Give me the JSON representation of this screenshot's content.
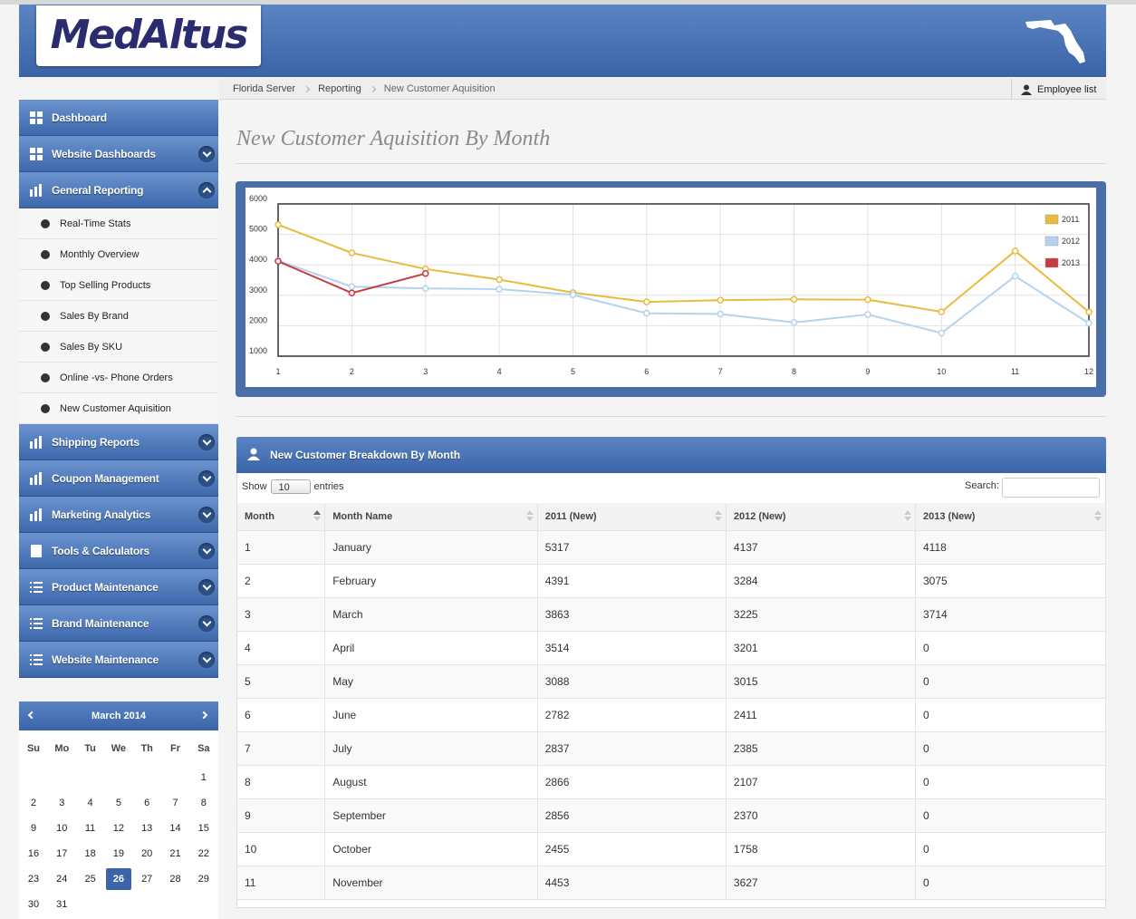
{
  "header": {
    "logo": "MedAltus"
  },
  "breadcrumb": [
    "Florida Server",
    "Reporting",
    "New Customer Aquisition"
  ],
  "employee_list": "Employee list",
  "sidebar": {
    "menu": [
      {
        "label": "Dashboard"
      },
      {
        "label": "Website Dashboards"
      },
      {
        "label": "General Reporting",
        "items": [
          "Real-Time Stats",
          "Monthly Overview",
          "Top Selling Products",
          "Sales By Brand",
          "Sales By SKU",
          "Online -vs- Phone Orders",
          "New Customer Aquisition"
        ]
      },
      {
        "label": "Shipping Reports"
      },
      {
        "label": "Coupon Management"
      },
      {
        "label": "Marketing Analytics"
      },
      {
        "label": "Tools & Calculators"
      },
      {
        "label": "Product Maintenance"
      },
      {
        "label": "Brand Maintenance"
      },
      {
        "label": "Website Maintenance"
      }
    ]
  },
  "calendar": {
    "month": "March 2014",
    "weekdays": [
      "Su",
      "Mo",
      "Tu",
      "We",
      "Th",
      "Fr",
      "Sa"
    ],
    "weeks": [
      [
        null,
        null,
        null,
        null,
        null,
        null,
        1
      ],
      [
        2,
        3,
        4,
        5,
        6,
        7,
        8
      ],
      [
        9,
        10,
        11,
        12,
        13,
        14,
        15
      ],
      [
        16,
        17,
        18,
        19,
        20,
        21,
        22
      ],
      [
        23,
        24,
        25,
        26,
        27,
        28,
        29
      ],
      [
        30,
        31,
        null,
        null,
        null,
        null,
        null
      ]
    ],
    "selected": 26
  },
  "page_title": "New Customer Aquisition By Month",
  "chart_data": {
    "type": "line",
    "x": [
      1,
      2,
      3,
      4,
      5,
      6,
      7,
      8,
      9,
      10,
      11,
      12
    ],
    "xlim": [
      1,
      12
    ],
    "xticks": [
      1,
      2,
      3,
      4,
      5,
      6,
      7,
      8,
      9,
      10,
      11,
      12
    ],
    "ylim": [
      1000,
      6000
    ],
    "yticks": [
      1000,
      2000,
      3000,
      4000,
      5000,
      6000
    ],
    "grid": true,
    "legend": "upper right",
    "series": [
      {
        "name": "2011",
        "color": "#e9bb3c",
        "values": [
          5317,
          4391,
          3863,
          3514,
          3088,
          2782,
          2837,
          2866,
          2856,
          2455,
          4453,
          2450
        ]
      },
      {
        "name": "2012",
        "color": "#b5d3ee",
        "values": [
          4137,
          3284,
          3225,
          3201,
          3015,
          2411,
          2385,
          2107,
          2370,
          1758,
          3627,
          2080
        ]
      },
      {
        "name": "2013",
        "color": "#c83a3e",
        "values": [
          4118,
          3075,
          3714,
          null,
          null,
          null,
          null,
          null,
          null,
          null,
          null,
          null
        ]
      }
    ]
  },
  "table": {
    "title": "New Customer Breakdown By Month",
    "show": "Show",
    "page_length": 10,
    "entries": "entries",
    "search": "Search:",
    "columns": [
      "Month",
      "Month Name",
      "2011 (New)",
      "2012 (New)",
      "2013 (New)"
    ],
    "rows": [
      [
        1,
        "January",
        5317,
        4137,
        4118
      ],
      [
        2,
        "February",
        4391,
        3284,
        3075
      ],
      [
        3,
        "March",
        3863,
        3225,
        3714
      ],
      [
        4,
        "April",
        3514,
        3201,
        0
      ],
      [
        5,
        "May",
        3088,
        3015,
        0
      ],
      [
        6,
        "June",
        2782,
        2411,
        0
      ],
      [
        7,
        "July",
        2837,
        2385,
        0
      ],
      [
        8,
        "August",
        2866,
        2107,
        0
      ],
      [
        9,
        "September",
        2856,
        2370,
        0
      ],
      [
        10,
        "October",
        2455,
        1758,
        0
      ],
      [
        11,
        "November",
        4453,
        3627,
        0
      ]
    ]
  }
}
